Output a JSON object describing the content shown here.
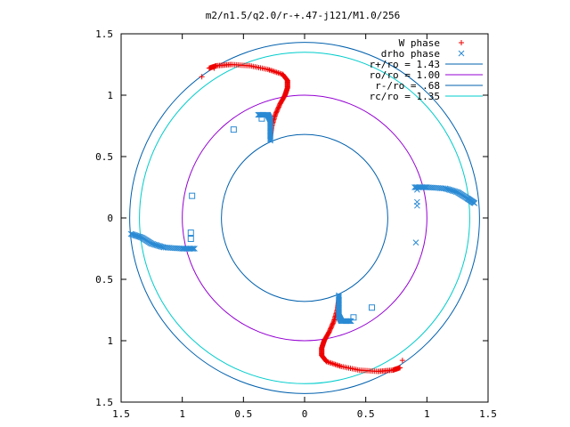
{
  "chart_data": {
    "type": "scatter",
    "title": "m2/n1.5/q2.0/r-+.47-j121/M1.0/256",
    "xlabel": "",
    "ylabel": "",
    "xlim": [
      -1.5,
      1.5
    ],
    "ylim": [
      -1.5,
      1.5
    ],
    "x_ticks": [
      -1.5,
      -1,
      -0.5,
      0,
      0.5,
      1,
      1.5
    ],
    "x_tick_labels": [
      "1.5",
      "1",
      "0.5",
      "0",
      "0.5",
      "1",
      "1.5"
    ],
    "y_ticks": [
      1.5,
      1,
      0.5,
      0,
      -0.5,
      -1,
      -1.5
    ],
    "y_tick_labels": [
      "1.5",
      "1",
      "0.5",
      "0",
      "0.5",
      "1",
      "1.5"
    ],
    "grid": false,
    "legend_position": "top-right",
    "circles": [
      {
        "name": "r+/ro = 1.43",
        "radius": 1.43,
        "color": "#0060ad"
      },
      {
        "name": "ro/ro = 1.00",
        "radius": 1.0,
        "color": "#9400d3"
      },
      {
        "name": "r-/ro = .68",
        "radius": 0.68,
        "color": "#0060ad"
      },
      {
        "name": "rc/ro = 1.35",
        "radius": 1.35,
        "color": "#00cccc"
      }
    ],
    "series": [
      {
        "name": "W phase",
        "marker": "plus",
        "color": "#ee0000",
        "curves": [
          [
            [
              -0.28,
              0.66
            ],
            [
              -0.27,
              0.74
            ],
            [
              -0.24,
              0.84
            ],
            [
              -0.2,
              0.93
            ],
            [
              -0.16,
              1.0
            ],
            [
              -0.14,
              1.06
            ],
            [
              -0.14,
              1.12
            ],
            [
              -0.18,
              1.17
            ],
            [
              -0.3,
              1.21
            ],
            [
              -0.45,
              1.24
            ],
            [
              -0.6,
              1.25
            ],
            [
              -0.72,
              1.24
            ],
            [
              -0.78,
              1.22
            ]
          ],
          [
            [
              0.28,
              -0.66
            ],
            [
              0.27,
              -0.74
            ],
            [
              0.24,
              -0.84
            ],
            [
              0.2,
              -0.93
            ],
            [
              0.16,
              -1.0
            ],
            [
              0.14,
              -1.06
            ],
            [
              0.14,
              -1.12
            ],
            [
              0.18,
              -1.17
            ],
            [
              0.3,
              -1.21
            ],
            [
              0.45,
              -1.24
            ],
            [
              0.6,
              -1.25
            ],
            [
              0.72,
              -1.24
            ],
            [
              0.78,
              -1.22
            ]
          ]
        ],
        "points": [
          [
            -0.84,
            1.15
          ],
          [
            -0.74,
            1.22
          ],
          [
            0.8,
            -1.16
          ]
        ]
      },
      {
        "name": "drho phase",
        "marker": "cross",
        "color": "#2a8ad4",
        "curves": [
          [
            [
              -0.28,
              0.63
            ],
            [
              -0.28,
              0.72
            ],
            [
              -0.28,
              0.8
            ],
            [
              -0.3,
              0.84
            ],
            [
              -0.38,
              0.84
            ]
          ],
          [
            [
              0.28,
              -0.63
            ],
            [
              0.28,
              -0.72
            ],
            [
              0.28,
              -0.8
            ],
            [
              0.3,
              -0.84
            ],
            [
              0.38,
              -0.84
            ]
          ],
          [
            [
              0.9,
              0.25
            ],
            [
              1.0,
              0.25
            ],
            [
              1.15,
              0.24
            ],
            [
              1.25,
              0.21
            ],
            [
              1.33,
              0.16
            ],
            [
              1.39,
              0.12
            ]
          ],
          [
            [
              -0.9,
              -0.25
            ],
            [
              -1.0,
              -0.25
            ],
            [
              -1.15,
              -0.24
            ],
            [
              -1.25,
              -0.21
            ],
            [
              -1.33,
              -0.16
            ],
            [
              -1.42,
              -0.13
            ]
          ]
        ],
        "points": [
          [
            0.92,
            0.23
          ],
          [
            0.92,
            0.13
          ],
          [
            0.92,
            0.1
          ],
          [
            0.91,
            -0.2
          ],
          [
            0.4,
            -0.81
          ],
          [
            0.55,
            -0.73
          ],
          [
            -0.35,
            0.81
          ],
          [
            -0.58,
            0.72
          ],
          [
            -0.92,
            0.18
          ],
          [
            -0.93,
            -0.12
          ],
          [
            -0.93,
            -0.17
          ]
        ]
      }
    ]
  }
}
